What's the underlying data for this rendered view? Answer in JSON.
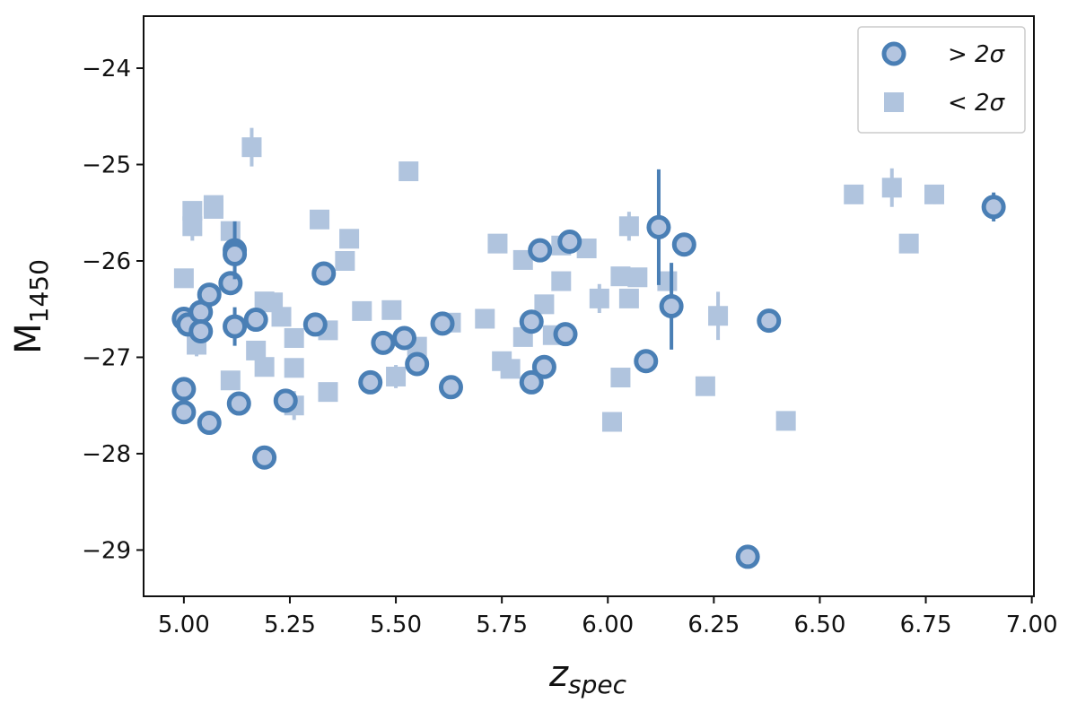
{
  "chart_data": {
    "type": "scatter",
    "xlabel": {
      "main": "z",
      "sub": "spec"
    },
    "ylabel": {
      "main": "M",
      "sub": "1450"
    },
    "xlim": [
      4.905,
      7.005
    ],
    "ylim": [
      -29.48,
      -23.46
    ],
    "xticks": [
      {
        "value": 5.0,
        "label": "5.00"
      },
      {
        "value": 5.25,
        "label": "5.25"
      },
      {
        "value": 5.5,
        "label": "5.50"
      },
      {
        "value": 5.75,
        "label": "5.75"
      },
      {
        "value": 6.0,
        "label": "6.00"
      },
      {
        "value": 6.25,
        "label": "6.25"
      },
      {
        "value": 6.5,
        "label": "6.50"
      },
      {
        "value": 6.75,
        "label": "6.75"
      },
      {
        "value": 7.0,
        "label": "7.00"
      }
    ],
    "yticks": [
      {
        "value": -24,
        "label": "−24"
      },
      {
        "value": -25,
        "label": "−25"
      },
      {
        "value": -26,
        "label": "−26"
      },
      {
        "value": -27,
        "label": "−27"
      },
      {
        "value": -28,
        "label": "−28"
      },
      {
        "value": -29,
        "label": "−29"
      }
    ],
    "legend": "upper right",
    "series": [
      {
        "name": "> 2σ",
        "marker": "circle",
        "color": "#4a7fb5",
        "fill": "#b4c5e0",
        "x": [
          5.0,
          5.01,
          5.04,
          5.06,
          5.04,
          5.0,
          5.0,
          5.06,
          5.11,
          5.12,
          5.12,
          5.12,
          5.13,
          5.17,
          5.19,
          5.24,
          5.31,
          5.33,
          5.44,
          5.47,
          5.52,
          5.55,
          5.61,
          5.63,
          5.82,
          5.82,
          5.84,
          5.85,
          5.91,
          5.9,
          6.09,
          6.12,
          6.15,
          6.18,
          6.33,
          6.38,
          6.91
        ],
        "values": [
          -26.6,
          -26.66,
          -26.53,
          -26.35,
          -26.73,
          -27.33,
          -27.57,
          -27.68,
          -26.23,
          -25.89,
          -25.93,
          -26.68,
          -27.48,
          -26.61,
          -28.04,
          -27.45,
          -26.66,
          -26.13,
          -27.26,
          -26.85,
          -26.8,
          -27.07,
          -26.65,
          -27.31,
          -26.63,
          -27.26,
          -25.89,
          -27.1,
          -25.8,
          -26.76,
          -27.04,
          -25.65,
          -26.47,
          -25.83,
          -29.07,
          -26.62,
          -25.44
        ],
        "errors": [
          null,
          null,
          null,
          null,
          null,
          null,
          null,
          null,
          null,
          0.3,
          null,
          0.2,
          null,
          null,
          null,
          null,
          null,
          null,
          null,
          null,
          null,
          null,
          null,
          null,
          null,
          null,
          null,
          null,
          null,
          null,
          null,
          0.6,
          0.45,
          null,
          null,
          null,
          0.15
        ]
      },
      {
        "name": "< 2σ",
        "marker": "square",
        "color": "#b0c4de",
        "x": [
          5.16,
          5.53,
          5.02,
          5.02,
          5.07,
          5.07,
          5.11,
          5.0,
          5.32,
          5.39,
          5.38,
          5.03,
          5.19,
          5.21,
          5.23,
          5.17,
          5.19,
          5.26,
          5.26,
          5.34,
          5.34,
          5.26,
          5.11,
          5.42,
          5.49,
          5.5,
          5.55,
          5.63,
          5.71,
          5.74,
          5.75,
          5.77,
          5.8,
          5.8,
          5.85,
          5.87,
          5.89,
          5.89,
          5.95,
          5.98,
          6.01,
          6.03,
          6.03,
          6.05,
          6.05,
          6.07,
          6.14,
          6.23,
          6.26,
          6.42,
          6.58,
          6.67,
          6.71,
          6.77
        ],
        "values": [
          -24.82,
          -25.07,
          -25.48,
          -25.64,
          -25.42,
          -25.46,
          -25.69,
          -26.18,
          -25.57,
          -25.77,
          -26.0,
          -26.87,
          -26.42,
          -26.43,
          -26.58,
          -26.93,
          -27.1,
          -26.8,
          -27.11,
          -26.72,
          -27.36,
          -27.5,
          -27.24,
          -26.52,
          -26.51,
          -27.2,
          -26.89,
          -26.64,
          -26.6,
          -25.82,
          -27.04,
          -27.12,
          -25.99,
          -26.79,
          -26.45,
          -26.77,
          -26.21,
          -25.84,
          -25.87,
          -26.39,
          -27.67,
          -26.16,
          -27.21,
          -25.64,
          -26.39,
          -26.17,
          -26.21,
          -27.3,
          -26.57,
          -27.66,
          -25.31,
          -25.24,
          -25.82,
          -25.31
        ],
        "errors": [
          0.2,
          null,
          null,
          0.15,
          null,
          null,
          null,
          null,
          null,
          null,
          null,
          0.12,
          null,
          null,
          null,
          null,
          null,
          null,
          null,
          null,
          null,
          0.15,
          null,
          null,
          null,
          0.12,
          null,
          null,
          null,
          null,
          null,
          null,
          null,
          null,
          null,
          null,
          null,
          null,
          null,
          0.15,
          null,
          null,
          null,
          0.15,
          null,
          null,
          null,
          null,
          0.25,
          null,
          null,
          0.2,
          null,
          0.1
        ]
      }
    ]
  }
}
